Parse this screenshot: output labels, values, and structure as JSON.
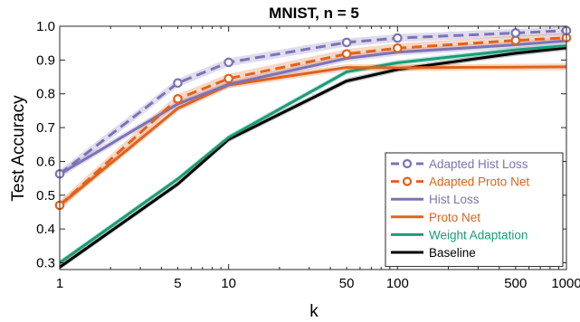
{
  "chart_data": {
    "type": "line",
    "title": "MNIST, n = 5",
    "xlabel": "k",
    "ylabel": "Test Accuracy",
    "xscale": "log",
    "xlim": [
      1,
      1000
    ],
    "ylim": [
      0.28,
      1.0
    ],
    "xticks": [
      1,
      5,
      10,
      50,
      100,
      500,
      1000
    ],
    "xtick_labels": [
      "1",
      "5",
      "10",
      "50",
      "100",
      "500",
      "1000"
    ],
    "yticks": [
      0.3,
      0.4,
      0.5,
      0.6,
      0.7,
      0.8,
      0.9,
      1.0
    ],
    "ytick_labels": [
      "0.3",
      "0.4",
      "0.5",
      "0.6",
      "0.7",
      "0.8",
      "0.9",
      "1.0"
    ],
    "grid": false,
    "legend_position": "bottom-right",
    "x": [
      1,
      5,
      10,
      50,
      100,
      500,
      1000
    ],
    "series": [
      {
        "name": "Adapted Hist Loss",
        "color": "#7e72b6",
        "dashed": true,
        "marker": "circle",
        "values": [
          0.563,
          0.832,
          0.893,
          0.952,
          0.965,
          0.98,
          0.987
        ],
        "band": 0.012
      },
      {
        "name": "Adapted Proto Net",
        "color": "#e0631a",
        "dashed": true,
        "marker": "circle",
        "values": [
          0.47,
          0.785,
          0.845,
          0.918,
          0.935,
          0.958,
          0.966
        ],
        "band": 0.014
      },
      {
        "name": "Hist Loss",
        "color": "#7e72b6",
        "dashed": false,
        "marker": "none",
        "values": [
          0.562,
          0.77,
          0.828,
          0.905,
          0.923,
          0.945,
          0.957
        ],
        "band": 0.01
      },
      {
        "name": "Proto Net",
        "color": "#e0631a",
        "dashed": false,
        "marker": "none",
        "values": [
          0.47,
          0.757,
          0.826,
          0.878,
          0.877,
          0.879,
          0.88
        ],
        "band": 0.01
      },
      {
        "name": "Weight Adaptation",
        "color": "#1a9c78",
        "dashed": false,
        "marker": "none",
        "values": [
          0.3,
          0.548,
          0.671,
          0.865,
          0.892,
          0.93,
          0.942
        ],
        "band": 0.008
      },
      {
        "name": "Baseline",
        "color": "#000000",
        "dashed": false,
        "marker": "none",
        "values": [
          0.287,
          0.533,
          0.665,
          0.838,
          0.872,
          0.92,
          0.936
        ],
        "band": 0.008
      }
    ]
  }
}
